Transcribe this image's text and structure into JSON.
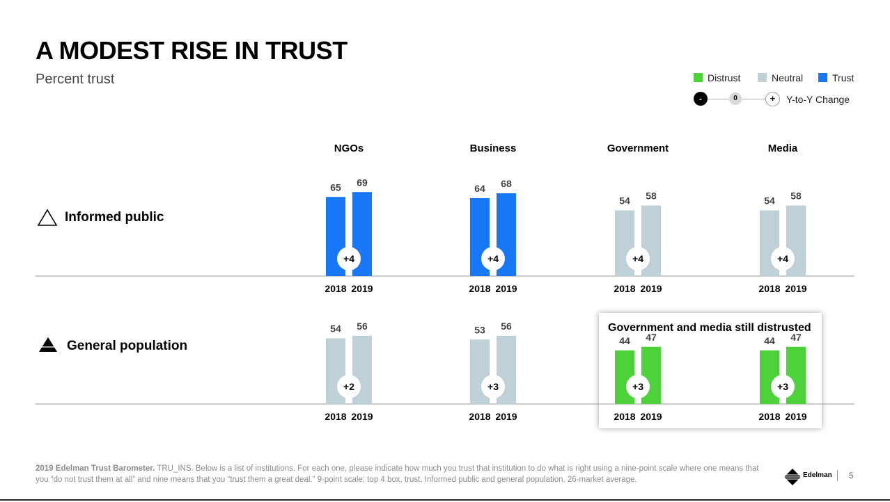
{
  "title": "A MODEST RISE IN TRUST",
  "subtitle": "Percent trust",
  "legend": {
    "distrust": "Distrust",
    "neutral": "Neutral",
    "trust": "Trust",
    "minus": "-",
    "zero": "0",
    "plus": "+",
    "change_label": "Y-to-Y Change"
  },
  "colors": {
    "distrust": "#4dd23a",
    "neutral": "#bfd0d6",
    "trust": "#1877f5"
  },
  "row_labels": {
    "informed": "Informed public",
    "general": "General population"
  },
  "callout_title": "Government and media still distrusted",
  "footnote": {
    "bold": "2019 Edelman Trust Barometer.",
    "text": " TRU_INS. Below is a list of institutions. For each one, please indicate how much you trust that institution to do what is right using a nine-point scale where one means that you “do not trust them at all” and nine means that you “trust them a great deal.” 9-point scale; top 4 box, trust. Informed public and general population, 26-market average."
  },
  "brand": "Edelman",
  "page_number": "5",
  "chart_data": {
    "type": "bar",
    "institutions": [
      "NGOs",
      "Business",
      "Government",
      "Media"
    ],
    "years": [
      "2018",
      "2019"
    ],
    "ylim": [
      0,
      100
    ],
    "groups": [
      {
        "row": "Informed public",
        "bars": [
          {
            "institution": "NGOs",
            "values": [
              65,
              69
            ],
            "change": "+4",
            "category": "trust"
          },
          {
            "institution": "Business",
            "values": [
              64,
              68
            ],
            "change": "+4",
            "category": "trust"
          },
          {
            "institution": "Government",
            "values": [
              54,
              58
            ],
            "change": "+4",
            "category": "neutral"
          },
          {
            "institution": "Media",
            "values": [
              54,
              58
            ],
            "change": "+4",
            "category": "neutral"
          }
        ]
      },
      {
        "row": "General population",
        "bars": [
          {
            "institution": "NGOs",
            "values": [
              54,
              56
            ],
            "change": "+2",
            "category": "neutral"
          },
          {
            "institution": "Business",
            "values": [
              53,
              56
            ],
            "change": "+3",
            "category": "neutral"
          },
          {
            "institution": "Government",
            "values": [
              44,
              47
            ],
            "change": "+3",
            "category": "distrust"
          },
          {
            "institution": "Media",
            "values": [
              44,
              47
            ],
            "change": "+3",
            "category": "distrust"
          }
        ]
      }
    ]
  }
}
